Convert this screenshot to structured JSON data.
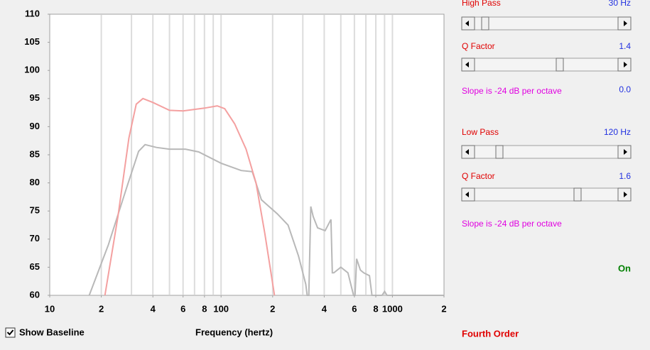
{
  "chart_data": {
    "type": "line",
    "xlabel": "Frequency (hertz)",
    "xlog": true,
    "xlim": [
      10,
      2000
    ],
    "xticks": [
      10,
      {
        "value": 20,
        "label": "2"
      },
      {
        "value": 40,
        "label": "4"
      },
      {
        "value": 60,
        "label": "6"
      },
      {
        "value": 80,
        "label": "8"
      },
      100,
      {
        "value": 200,
        "label": "2"
      },
      {
        "value": 400,
        "label": "4"
      },
      {
        "value": 600,
        "label": "6"
      },
      {
        "value": 800,
        "label": "8"
      },
      1000,
      {
        "value": 2000,
        "label": "2"
      }
    ],
    "ylim": [
      60,
      110
    ],
    "yticks": [
      60,
      65,
      70,
      75,
      80,
      85,
      90,
      95,
      100,
      105,
      110
    ],
    "grid_x": [
      20,
      30,
      40,
      50,
      60,
      70,
      80,
      90,
      100,
      200,
      300,
      400,
      500,
      600,
      700,
      800,
      900,
      1000
    ],
    "series": [
      {
        "color": "#b8b8b8",
        "x": [
          17,
          22,
          28,
          33,
          36,
          42,
          50,
          62,
          74,
          100,
          131,
          152,
          172,
          213,
          246,
          283,
          312,
          318,
          325,
          334,
          345,
          366,
          405,
          438,
          446,
          455,
          500,
          550,
          593,
          605,
          618,
          650,
          680,
          735,
          760,
          794,
          870,
          900,
          930,
          2000
        ],
        "values": [
          60,
          69,
          79,
          85.6,
          86.8,
          86.3,
          86.0,
          86.0,
          85.5,
          83.5,
          82.2,
          82.0,
          77,
          74.5,
          72.5,
          67,
          62,
          60,
          60,
          75.8,
          74,
          72,
          71.5,
          73.5,
          64,
          64,
          65,
          64,
          60,
          60,
          66.5,
          64.5,
          64,
          63.5,
          60,
          60,
          60,
          60.7,
          60,
          60
        ]
      },
      {
        "color": "#f4a0a0",
        "x": [
          21,
          25,
          29,
          32,
          35,
          40,
          50,
          60,
          80,
          95,
          105,
          120,
          140,
          160,
          180,
          205
        ],
        "values": [
          60,
          74,
          88,
          94,
          95,
          94.3,
          92.9,
          92.8,
          93.3,
          93.7,
          93.2,
          90.5,
          86,
          80,
          71,
          60
        ]
      }
    ]
  },
  "controls": {
    "high_pass": {
      "label": "High Pass",
      "value": "30 Hz"
    },
    "high_q": {
      "label": "Q Factor",
      "value": "1.4"
    },
    "high_slope": {
      "label": "Slope is -24 dB per octave",
      "value": "0.0"
    },
    "low_pass": {
      "label": "Low Pass",
      "value": "120 Hz"
    },
    "low_q": {
      "label": "Q Factor",
      "value": "1.6"
    },
    "low_slope": {
      "label": "Slope is -24 dB per octave"
    },
    "status": "On",
    "order": "Fourth Order",
    "baseline": "Show Baseline"
  }
}
